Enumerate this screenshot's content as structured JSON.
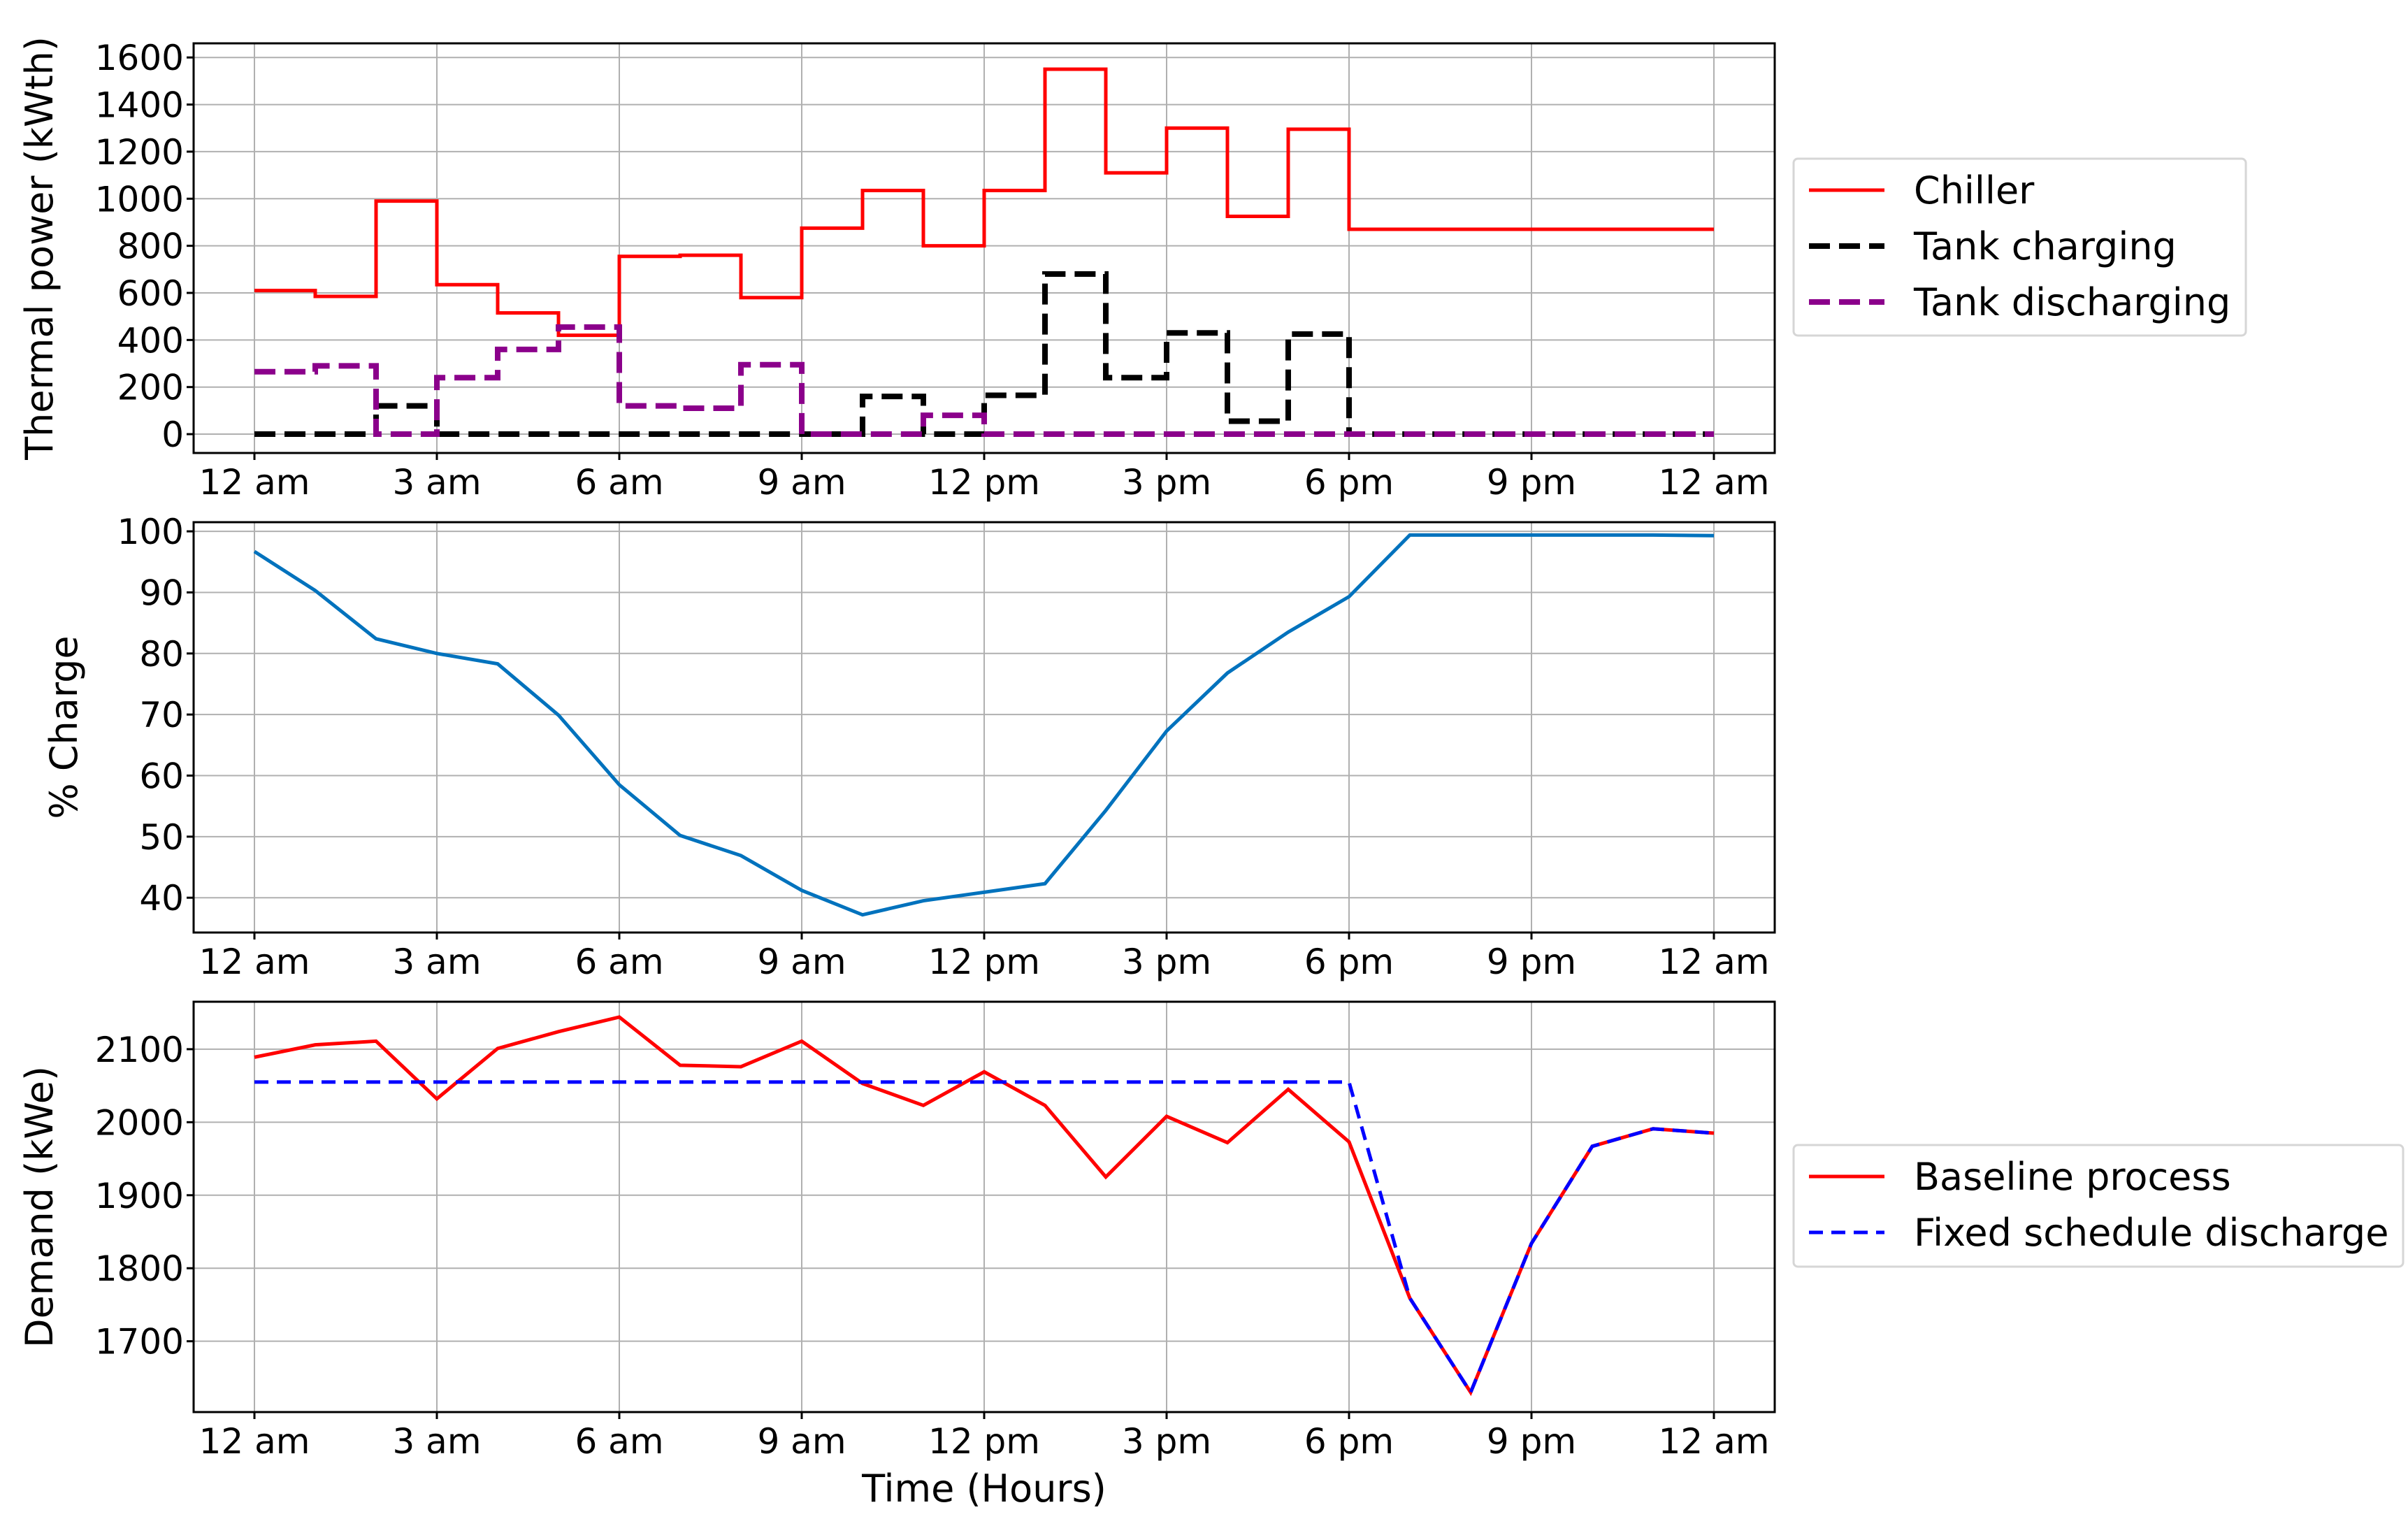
{
  "chart_data": [
    {
      "type": "line",
      "step": true,
      "ylabel": "Thermal power (kWth)",
      "xlabel": "",
      "ylim": [
        -80,
        1660
      ],
      "yticks": [
        0,
        200,
        400,
        600,
        800,
        1000,
        1200,
        1400,
        1600
      ],
      "x": [
        0,
        1,
        2,
        3,
        4,
        5,
        6,
        7,
        8,
        9,
        10,
        11,
        12,
        13,
        14,
        15,
        16,
        17,
        18,
        19,
        20,
        21,
        22,
        23,
        24
      ],
      "xticks": [
        0,
        3,
        6,
        9,
        12,
        15,
        18,
        21,
        24
      ],
      "xticklabels": [
        "12 am",
        "3 am",
        "6 am",
        "9 am",
        "12 pm",
        "3 pm",
        "6 pm",
        "9 pm",
        "12 am"
      ],
      "grid": true,
      "legend_position": "outside right",
      "series": [
        {
          "name": "Chiller",
          "color": "#ff0000",
          "dash": "solid",
          "values": [
            610,
            585,
            990,
            635,
            515,
            420,
            755,
            760,
            580,
            875,
            1035,
            800,
            1035,
            1550,
            1110,
            1300,
            925,
            1295,
            870,
            870,
            870,
            870,
            870,
            870,
            870
          ]
        },
        {
          "name": "Tank charging",
          "color": "#000000",
          "dash": "dashed",
          "values": [
            0,
            0,
            120,
            0,
            0,
            0,
            0,
            0,
            0,
            0,
            160,
            0,
            165,
            680,
            240,
            430,
            55,
            425,
            0,
            0,
            0,
            0,
            0,
            0,
            0
          ]
        },
        {
          "name": "Tank discharging",
          "color": "#8b008b",
          "dash": "dashed",
          "values": [
            265,
            290,
            0,
            240,
            360,
            455,
            120,
            110,
            295,
            0,
            0,
            80,
            0,
            0,
            0,
            0,
            0,
            0,
            0,
            0,
            0,
            0,
            0,
            0,
            0
          ]
        }
      ]
    },
    {
      "type": "line",
      "ylabel": "% Charge",
      "xlabel": "",
      "ylim": [
        34.3,
        101.5
      ],
      "yticks": [
        40,
        50,
        60,
        70,
        80,
        90,
        100
      ],
      "x": [
        0,
        1,
        2,
        3,
        4,
        5,
        6,
        7,
        8,
        9,
        10,
        11,
        12,
        13,
        14,
        15,
        16,
        17,
        18,
        19,
        20,
        21,
        22,
        23,
        24
      ],
      "xticks": [
        0,
        3,
        6,
        9,
        12,
        15,
        18,
        21,
        24
      ],
      "xticklabels": [
        "12 am",
        "3 am",
        "6 am",
        "9 am",
        "12 pm",
        "3 pm",
        "6 pm",
        "9 pm",
        "12 am"
      ],
      "grid": true,
      "series": [
        {
          "name": "",
          "color": "#0072bd",
          "dash": "solid",
          "values": [
            96.7,
            90.3,
            82.4,
            80.0,
            78.3,
            69.9,
            58.5,
            50.2,
            46.9,
            41.2,
            37.2,
            39.5,
            40.9,
            42.3,
            54.3,
            67.3,
            76.8,
            83.5,
            89.3,
            99.4,
            99.4,
            99.4,
            99.4,
            99.4,
            99.3
          ]
        }
      ]
    },
    {
      "type": "line",
      "ylabel": "Demand (kWe)",
      "xlabel": "Time (Hours)",
      "ylim": [
        1603,
        2165
      ],
      "yticks": [
        1700,
        1800,
        1900,
        2000,
        2100
      ],
      "x": [
        0,
        1,
        2,
        3,
        4,
        5,
        6,
        7,
        8,
        9,
        10,
        11,
        12,
        13,
        14,
        15,
        16,
        17,
        18,
        19,
        20,
        21,
        22,
        23,
        24
      ],
      "xticks": [
        0,
        3,
        6,
        9,
        12,
        15,
        18,
        21,
        24
      ],
      "xticklabels": [
        "12 am",
        "3 am",
        "6 am",
        "9 am",
        "12 pm",
        "3 pm",
        "6 pm",
        "9 pm",
        "12 am"
      ],
      "grid": true,
      "legend_position": "outside right",
      "series": [
        {
          "name": "Baseline process",
          "color": "#ff0000",
          "dash": "solid",
          "values": [
            2089,
            2106,
            2111,
            2032,
            2101,
            2124,
            2144,
            2078,
            2076,
            2111,
            2053,
            2023,
            2069,
            2023,
            1925,
            2008,
            1972,
            2045,
            1973,
            1759,
            1630,
            1834,
            1967,
            1991,
            1985
          ]
        },
        {
          "name": "Fixed schedule discharge",
          "color": "#0000ff",
          "dash": "dashed",
          "values": [
            2055,
            2055,
            2055,
            2055,
            2055,
            2055,
            2055,
            2055,
            2055,
            2055,
            2055,
            2055,
            2055,
            2055,
            2055,
            2055,
            2055,
            2055,
            2055,
            1759,
            1630,
            1834,
            1967,
            1991,
            1985
          ]
        }
      ]
    }
  ]
}
